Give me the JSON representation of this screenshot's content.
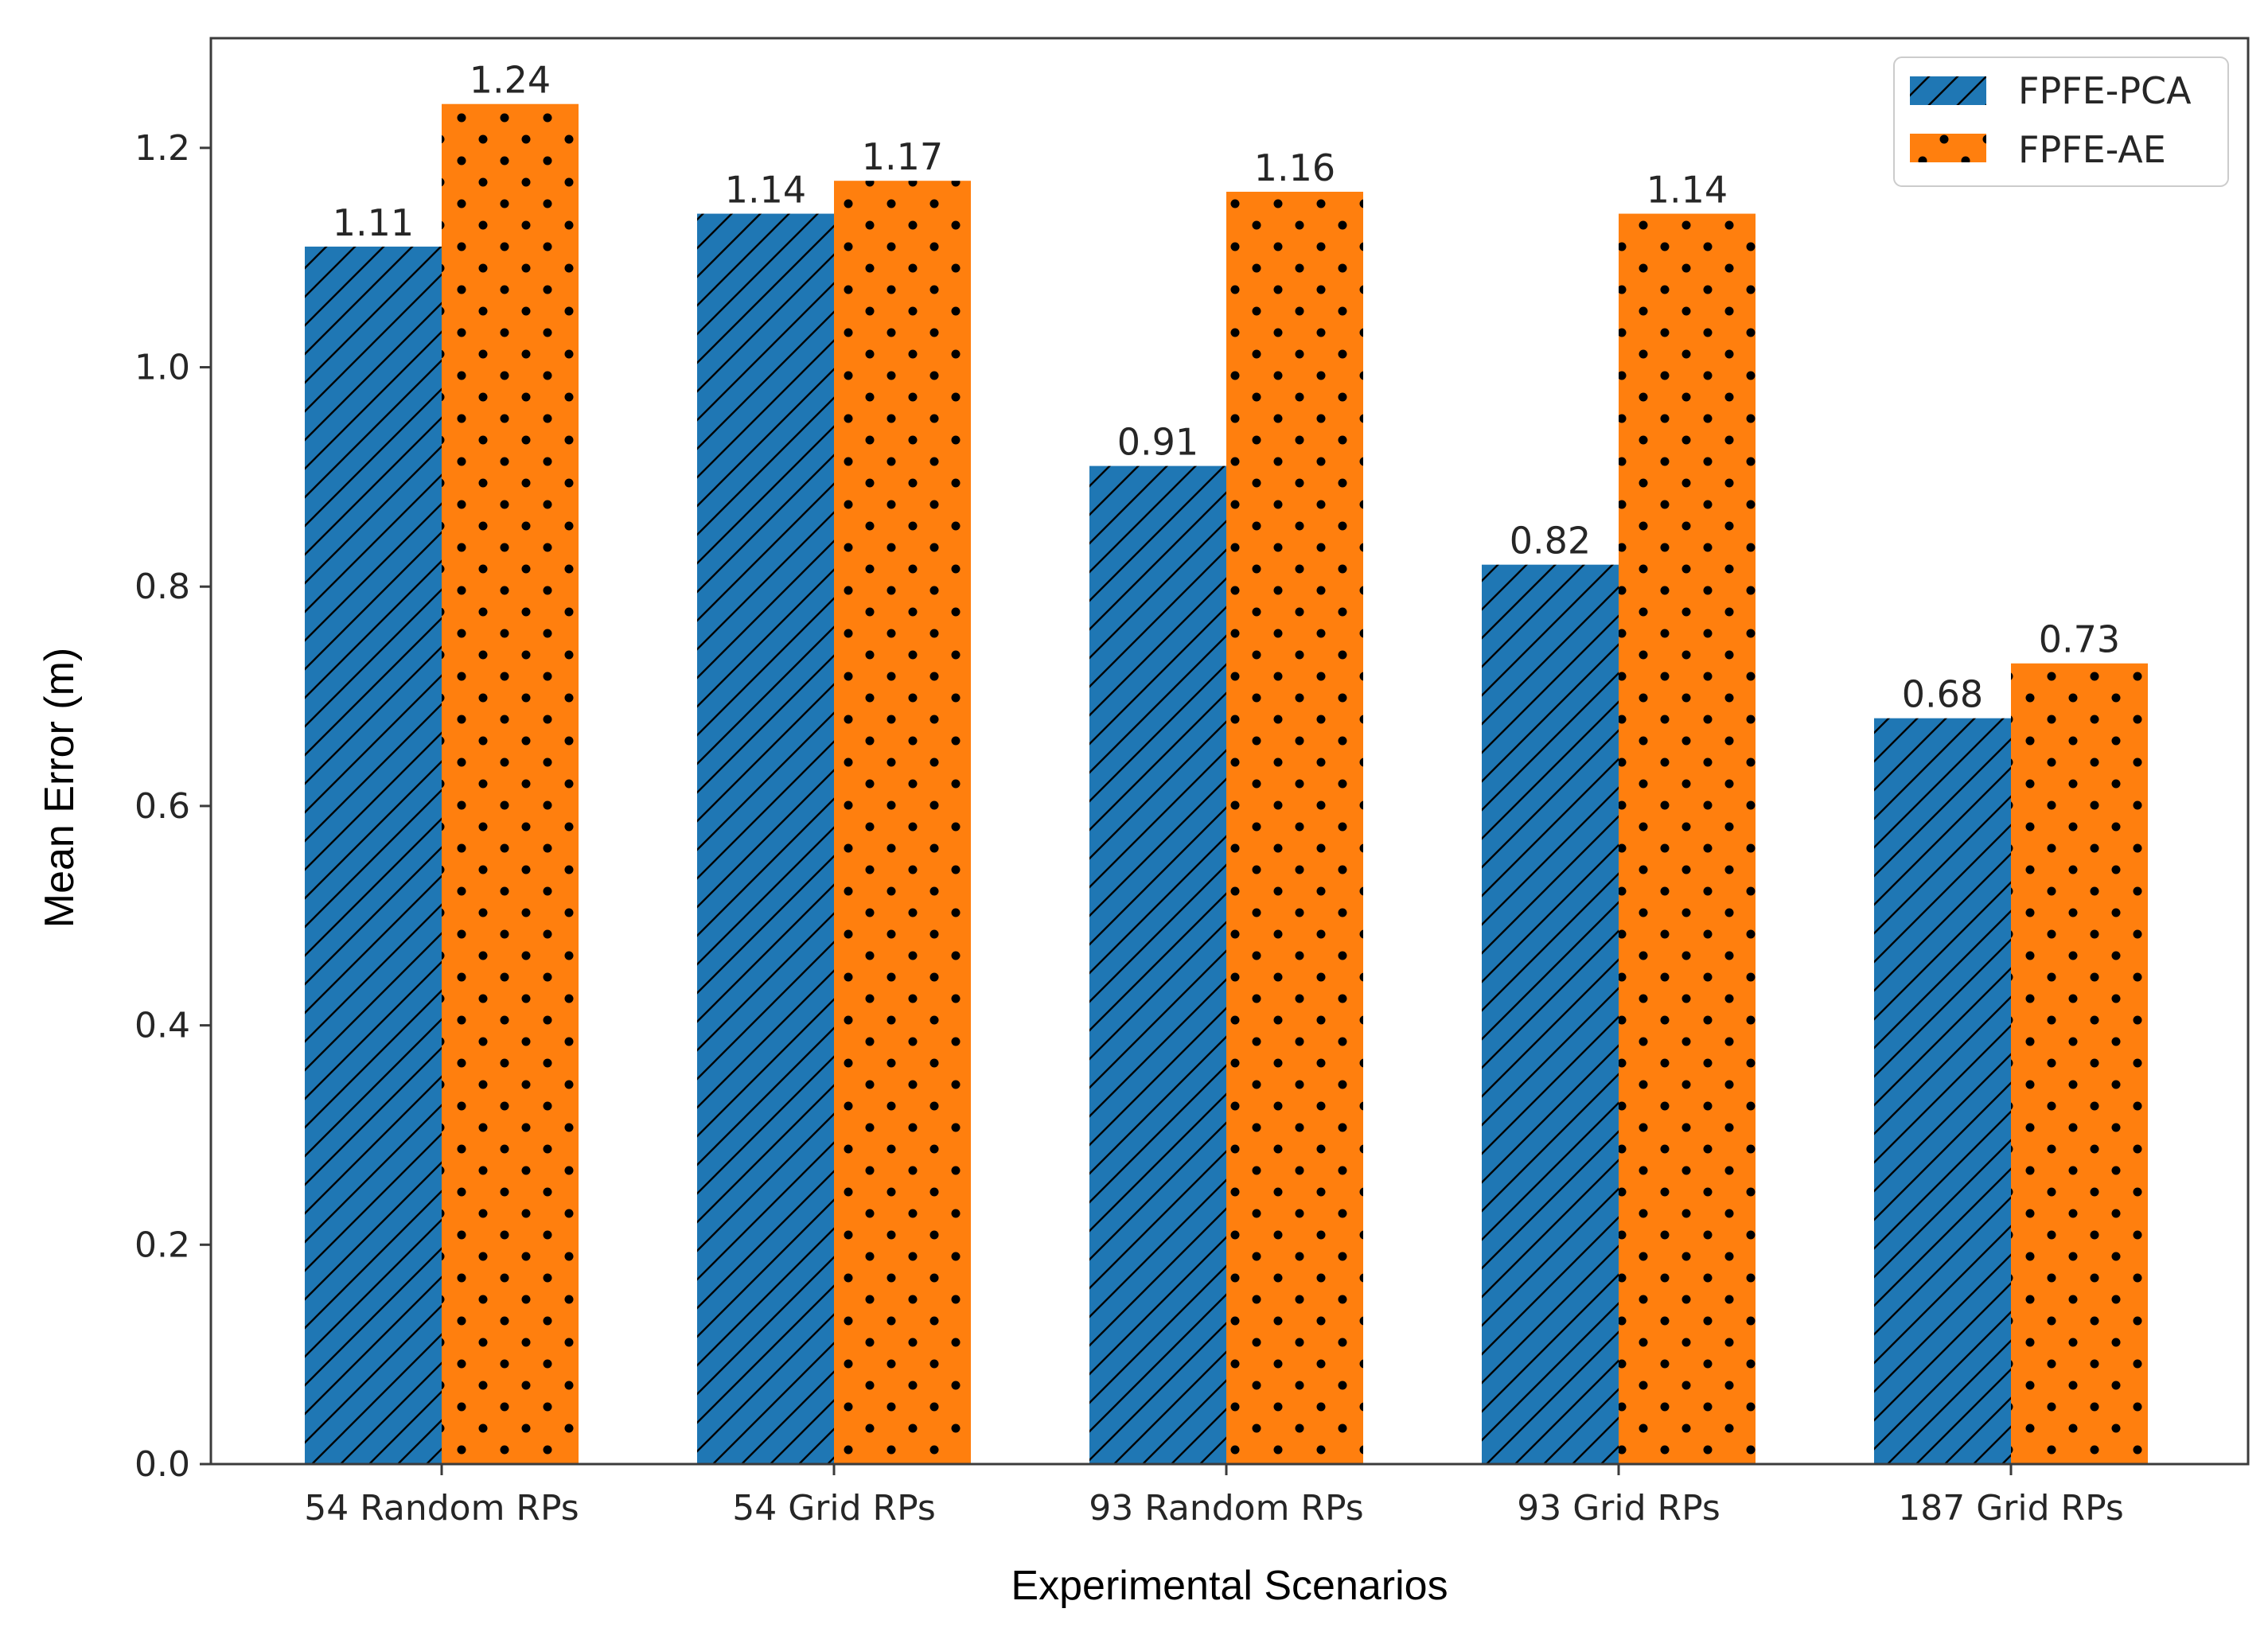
{
  "chart_data": {
    "type": "bar",
    "title": "",
    "xlabel": "Experimental Scenarios",
    "ylabel": "Mean Error (m)",
    "ylim": [
      0,
      1.3
    ],
    "yticks": [
      0.0,
      0.2,
      0.4,
      0.6,
      0.8,
      1.0,
      1.2
    ],
    "ytick_labels": [
      "0.0",
      "0.2",
      "0.4",
      "0.6",
      "0.8",
      "1.0",
      "1.2"
    ],
    "categories": [
      "54 Random RPs",
      "54 Grid RPs",
      "93 Random RPs",
      "93 Grid RPs",
      "187 Grid RPs"
    ],
    "series": [
      {
        "name": "FPFE-PCA",
        "color": "#1f77b4",
        "hatch": "diagonal",
        "values": [
          1.11,
          1.14,
          0.91,
          0.82,
          0.68
        ],
        "labels": [
          "1.11",
          "1.14",
          "0.91",
          "0.82",
          "0.68"
        ]
      },
      {
        "name": "FPFE-AE",
        "color": "#ff7f0e",
        "hatch": "dots",
        "values": [
          1.24,
          1.17,
          1.16,
          1.14,
          0.73
        ],
        "labels": [
          "1.24",
          "1.17",
          "1.16",
          "1.14",
          "0.73"
        ]
      }
    ],
    "legend_position": "top-right",
    "grid": false
  }
}
